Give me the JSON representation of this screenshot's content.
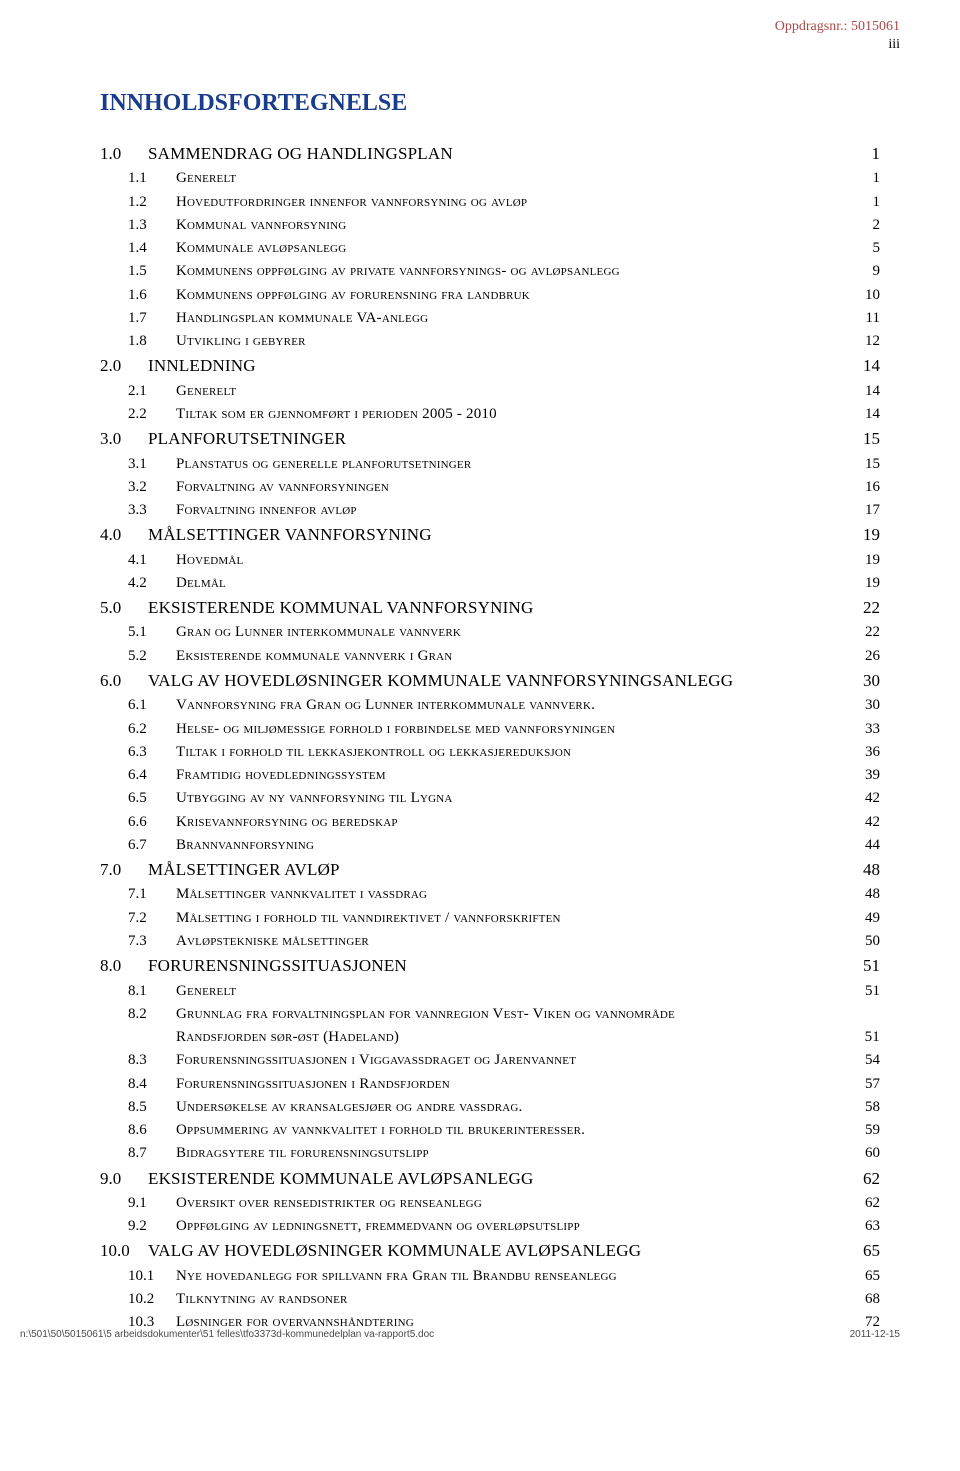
{
  "header": {
    "oppdrag_label": "Oppdragsnr.: 5015061",
    "page_roman": "iii"
  },
  "title": "INNHOLDSFORTEGNELSE",
  "toc": [
    {
      "level": "top",
      "num": "1.0",
      "title": "SAMMENDRAG OG HANDLINGSPLAN",
      "page": "1"
    },
    {
      "level": "sub",
      "num": "1.1",
      "title": "Generelt",
      "page": "1"
    },
    {
      "level": "sub",
      "num": "1.2",
      "title": "Hovedutfordringer innenfor vannforsyning og avløp",
      "page": "1"
    },
    {
      "level": "sub",
      "num": "1.3",
      "title": "Kommunal vannforsyning",
      "page": "2"
    },
    {
      "level": "sub",
      "num": "1.4",
      "title": "Kommunale avløpsanlegg",
      "page": "5"
    },
    {
      "level": "sub",
      "num": "1.5",
      "title": "Kommunens oppfølging av private vannforsynings- og avløpsanlegg",
      "page": "9"
    },
    {
      "level": "sub",
      "num": "1.6",
      "title": "Kommunens oppfølging av forurensning fra landbruk",
      "page": "10"
    },
    {
      "level": "sub",
      "num": "1.7",
      "title": "Handlingsplan kommunale VA-anlegg",
      "page": "11"
    },
    {
      "level": "sub",
      "num": "1.8",
      "title": "Utvikling i gebyrer",
      "page": "12"
    },
    {
      "level": "top",
      "num": "2.0",
      "title": "INNLEDNING",
      "page": "14"
    },
    {
      "level": "sub",
      "num": "2.1",
      "title": "Generelt",
      "page": "14"
    },
    {
      "level": "sub",
      "num": "2.2",
      "title": "Tiltak som er gjennomført i perioden 2005 - 2010",
      "page": "14"
    },
    {
      "level": "top",
      "num": "3.0",
      "title": "PLANFORUTSETNINGER",
      "page": "15"
    },
    {
      "level": "sub",
      "num": "3.1",
      "title": "Planstatus og generelle planforutsetninger",
      "page": "15"
    },
    {
      "level": "sub",
      "num": "3.2",
      "title": "Forvaltning av vannforsyningen",
      "page": "16"
    },
    {
      "level": "sub",
      "num": "3.3",
      "title": "Forvaltning innenfor avløp",
      "page": "17"
    },
    {
      "level": "top",
      "num": "4.0",
      "title": "MÅLSETTINGER VANNFORSYNING",
      "page": "19"
    },
    {
      "level": "sub",
      "num": "4.1",
      "title": "Hovedmål",
      "page": "19"
    },
    {
      "level": "sub",
      "num": "4.2",
      "title": "Delmål",
      "page": "19"
    },
    {
      "level": "top",
      "num": "5.0",
      "title": "EKSISTERENDE KOMMUNAL VANNFORSYNING",
      "page": "22"
    },
    {
      "level": "sub",
      "num": "5.1",
      "title": "Gran og Lunner interkommunale vannverk",
      "page": "22"
    },
    {
      "level": "sub",
      "num": "5.2",
      "title": "Eksisterende kommunale vannverk i Gran",
      "page": "26"
    },
    {
      "level": "top",
      "num": "6.0",
      "title": "VALG AV HOVEDLØSNINGER KOMMUNALE VANNFORSYNINGSANLEGG",
      "page": "30"
    },
    {
      "level": "sub",
      "num": "6.1",
      "title": "Vannforsyning fra Gran og Lunner interkommunale vannverk.",
      "page": "30"
    },
    {
      "level": "sub",
      "num": "6.2",
      "title": "Helse- og miljømessige forhold i forbindelse med vannforsyningen",
      "page": "33"
    },
    {
      "level": "sub",
      "num": "6.3",
      "title": "Tiltak i forhold til lekkasjekontroll og lekkasjereduksjon",
      "page": "36"
    },
    {
      "level": "sub",
      "num": "6.4",
      "title": "Framtidig hovedledningssystem",
      "page": "39"
    },
    {
      "level": "sub",
      "num": "6.5",
      "title": "Utbygging av ny vannforsyning til Lygna",
      "page": "42"
    },
    {
      "level": "sub",
      "num": "6.6",
      "title": "Krisevannforsyning og beredskap",
      "page": "42"
    },
    {
      "level": "sub",
      "num": "6.7",
      "title": "Brannvannforsyning",
      "page": "44"
    },
    {
      "level": "top",
      "num": "7.0",
      "title": "MÅLSETTINGER AVLØP",
      "page": "48"
    },
    {
      "level": "sub",
      "num": "7.1",
      "title": "Målsettinger vannkvalitet i vassdrag",
      "page": "48"
    },
    {
      "level": "sub",
      "num": "7.2",
      "title": "Målsetting i forhold til vanndirektivet / vannforskriften",
      "page": "49"
    },
    {
      "level": "sub",
      "num": "7.3",
      "title": "Avløpstekniske målsettinger",
      "page": "50"
    },
    {
      "level": "top",
      "num": "8.0",
      "title": "FORURENSNINGSSITUASJONEN",
      "page": "51"
    },
    {
      "level": "sub",
      "num": "8.1",
      "title": "Generelt",
      "page": "51"
    },
    {
      "level": "sub",
      "num": "8.2",
      "title": "Grunnlag fra forvaltningsplan for vannregion Vest- Viken og vannområde",
      "cont": "Randsfjorden sør-øst (Hadeland)",
      "page": "51"
    },
    {
      "level": "sub",
      "num": "8.3",
      "title": "Forurensningssituasjonen i Viggavassdraget og Jarenvannet",
      "page": "54"
    },
    {
      "level": "sub",
      "num": "8.4",
      "title": "Forurensningssituasjonen i Randsfjorden",
      "page": "57"
    },
    {
      "level": "sub",
      "num": "8.5",
      "title": "Undersøkelse av kransalgesjøer og andre vassdrag.",
      "page": "58"
    },
    {
      "level": "sub",
      "num": "8.6",
      "title": "Oppsummering av vannkvalitet i forhold til brukerinteresser.",
      "page": "59"
    },
    {
      "level": "sub",
      "num": "8.7",
      "title": "Bidragsytere til forurensningsutslipp",
      "page": "60"
    },
    {
      "level": "top",
      "num": "9.0",
      "title": "EKSISTERENDE KOMMUNALE AVLØPSANLEGG",
      "page": "62"
    },
    {
      "level": "sub",
      "num": "9.1",
      "title": "Oversikt over rensedistrikter og renseanlegg",
      "page": "62"
    },
    {
      "level": "sub",
      "num": "9.2",
      "title": "Oppfølging av ledningsnett, fremmedvann og overløpsutslipp",
      "page": "63"
    },
    {
      "level": "top",
      "num": "10.0",
      "title": "VALG AV HOVEDLØSNINGER KOMMUNALE AVLØPSANLEGG",
      "page": "65"
    },
    {
      "level": "sub",
      "num": "10.1",
      "title": "Nye hovedanlegg for spillvann fra Gran  til Brandbu renseanlegg",
      "page": "65"
    },
    {
      "level": "sub",
      "num": "10.2",
      "title": "Tilknytning av randsoner",
      "page": "68"
    },
    {
      "level": "sub",
      "num": "10.3",
      "title": "Løsninger for overvannshåndtering",
      "page": "72"
    }
  ],
  "footer": {
    "path": "n:\\501\\50\\5015061\\5 arbeidsdokumenter\\51 felles\\tfo3373d-kommunedelplan va-rapport5.doc",
    "date": "2011-12-15"
  },
  "colors": {
    "title": "#1a3c8c",
    "oppdrag": "#a94a4a",
    "text": "#000000",
    "footer": "#4a4a4a",
    "background": "#ffffff"
  },
  "fonts": {
    "body": "Times New Roman",
    "footer": "Arial"
  }
}
